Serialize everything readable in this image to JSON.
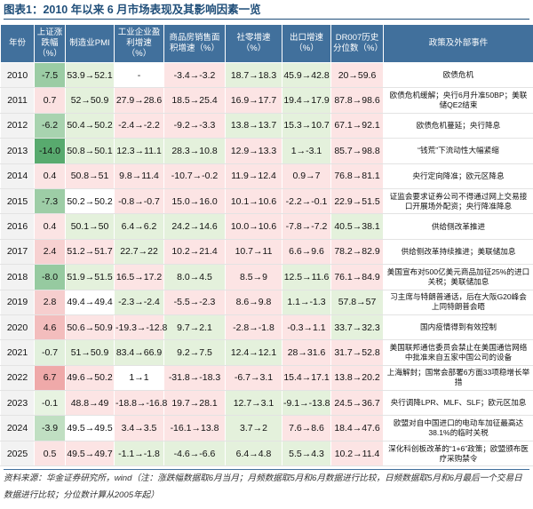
{
  "title": "图表1：2010 年以来 6 月市场表现及其影响因素一览",
  "table": {
    "header": [
      "年份",
      "上证涨跌幅（%）",
      "制造业PMI",
      "工业企业盈利增速（%）",
      "商品房销售面积增速（%）",
      "社零增速（%）",
      "出口增速（%）",
      "DR007历史分位数（%）",
      "政策及外部事件"
    ],
    "rows": [
      [
        "2010",
        "-7.5",
        "53.9→52.1",
        "-",
        "-3.4→-3.2",
        "18.7→18.3",
        "45.9→42.8",
        "20→59.6",
        "欧债危机"
      ],
      [
        "2011",
        "0.7",
        "52→50.9",
        "27.9→28.6",
        "18.5→25.4",
        "16.9→17.7",
        "19.4→17.9",
        "87.8→98.6",
        "欧债危机缓解；央行6月升准50BP；美联储QE2结束"
      ],
      [
        "2012",
        "-6.2",
        "50.4→50.2",
        "-2.4→-2.2",
        "-9.2→-3.3",
        "13.8→13.7",
        "15.3→10.7",
        "67.1→92.1",
        "欧债危机蔓延；央行降息"
      ],
      [
        "2013",
        "-14.0",
        "50.8→50.1",
        "12.3→11.1",
        "28.3→10.8",
        "12.9→13.3",
        "1→-3.1",
        "85.7→98.8",
        "“钱荒”下流动性大幅紧缩"
      ],
      [
        "2014",
        "0.4",
        "50.8→51",
        "9.8→11.4",
        "-10.7→-0.2",
        "11.9→12.4",
        "0.9→7",
        "76.8→81.1",
        "央行定向降准；欧元区降息"
      ],
      [
        "2015",
        "-7.3",
        "50.2→50.2",
        "-0.8→-0.7",
        "15.0→16.0",
        "10.1→10.6",
        "-2.2→-0.1",
        "22.9→51.5",
        "证监会要求证券公司不得通过网上交易接口开展场外配资；央行降准降息"
      ],
      [
        "2016",
        "0.4",
        "50.1→50",
        "6.4→6.2",
        "24.2→14.6",
        "10.0→10.6",
        "-7.8→-7.2",
        "40.5→38.1",
        "供给侧改革推进"
      ],
      [
        "2017",
        "2.4",
        "51.2→51.7",
        "22.7→22",
        "10.2→21.4",
        "10.7→11",
        "6.6→9.6",
        "78.2→82.9",
        "供给侧改革持续推进；美联储加息"
      ],
      [
        "2018",
        "-8.0",
        "51.9→51.5",
        "16.5→17.2",
        "8.0→4.5",
        "8.5→9",
        "12.5→11.6",
        "76.1→84.9",
        "美国宣布对500亿美元商品加征25%的进口关税；美联储加息"
      ],
      [
        "2019",
        "2.8",
        "49.4→49.4",
        "-2.3→-2.4",
        "-5.5→-2.3",
        "8.6→9.8",
        "1.1→-1.3",
        "57.8→57",
        "习主席与特朗普通话，后在大阪G20峰会上同特朗普会晤"
      ],
      [
        "2020",
        "4.6",
        "50.6→50.9",
        "-19.3→-12.8",
        "9.7→2.1",
        "-2.8→-1.8",
        "-0.3→1.1",
        "33.7→32.3",
        "国内疫情得到有效控制"
      ],
      [
        "2021",
        "-0.7",
        "51→50.9",
        "83.4→66.9",
        "9.2→7.5",
        "12.4→12.1",
        "28→31.6",
        "31.7→52.8",
        "美国联邦通信委员会禁止在美国通信网络中批准来自五家中国公司的设备"
      ],
      [
        "2022",
        "6.7",
        "49.6→50.2",
        "1→1",
        "-31.8→-18.3",
        "-6.7→3.1",
        "15.4→17.1",
        "13.8→20.2",
        "上海解封；国常会部署6方面33项稳增长举措"
      ],
      [
        "2023",
        "-0.1",
        "48.8→49",
        "-18.8→-16.8",
        "19.7→28.1",
        "12.7→3.1",
        "-9.1→-13.8",
        "24.5→36.7",
        "央行调降LPR、MLF、SLF；欧元区加息"
      ],
      [
        "2024",
        "-3.9",
        "49.5→49.5",
        "3.4→3.5",
        "-16.1→13.8",
        "3.7→2",
        "7.6→8.6",
        "18.4→47.6",
        "欧盟对自中国进口的电动车加征最高达38.1%的临时关税"
      ],
      [
        "2025",
        "0.5",
        "49.5→49.7",
        "-1.1→-1.8",
        "-4.6→-6.6",
        "6.4→4.8",
        "5.5→4.3",
        "10.2→11.4",
        "深化科创板改革的“1+6”政策；欧盟颁布医疗采购禁令"
      ]
    ]
  },
  "footer": "资料来源：华金证券研究所，wind（注：涨跌幅数据取6月当月；月频数据取5月和6月数据进行比较，日频数据取5月和6月最后一个交易日数据进行比较；分位数计算从2005年起）"
}
